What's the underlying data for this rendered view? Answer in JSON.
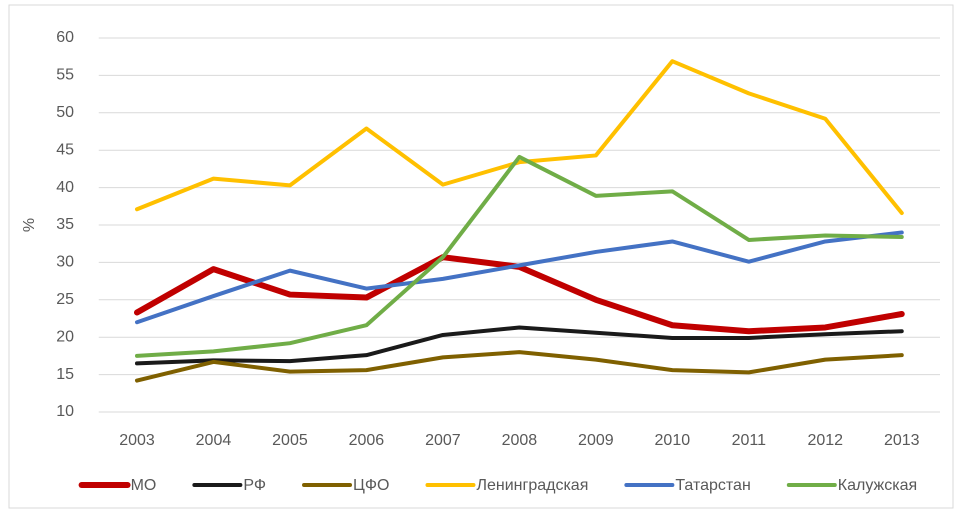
{
  "chart_data": {
    "type": "line",
    "ylabel": "%",
    "categories": [
      "2003",
      "2004",
      "2005",
      "2006",
      "2007",
      "2008",
      "2009",
      "2010",
      "2011",
      "2012",
      "2013"
    ],
    "series": [
      {
        "name": "МО",
        "color": "#c00000",
        "values": [
          23.3,
          29.1,
          25.7,
          25.3,
          30.7,
          29.4,
          25.0,
          21.6,
          20.8,
          21.3,
          23.1
        ]
      },
      {
        "name": "РФ",
        "color": "#1a1a1a",
        "values": [
          16.5,
          16.9,
          16.8,
          17.6,
          20.3,
          21.3,
          20.6,
          19.9,
          19.9,
          20.4,
          20.8
        ]
      },
      {
        "name": "ЦФО",
        "color": "#7f6000",
        "values": [
          14.2,
          16.7,
          15.4,
          15.6,
          17.3,
          18.0,
          17.0,
          15.6,
          15.3,
          17.0,
          17.6
        ]
      },
      {
        "name": "Ленинградская",
        "color": "#ffc000",
        "values": [
          37.1,
          41.2,
          40.3,
          47.9,
          40.4,
          43.4,
          44.3,
          56.9,
          52.6,
          49.2,
          36.6
        ]
      },
      {
        "name": "Татарстан",
        "color": "#4472c4",
        "values": [
          22.0,
          25.5,
          28.9,
          26.5,
          27.8,
          29.6,
          31.4,
          32.8,
          30.1,
          32.8,
          34.0
        ]
      },
      {
        "name": "Калужская",
        "color": "#70ad47",
        "values": [
          17.5,
          18.1,
          19.2,
          21.6,
          30.7,
          44.1,
          38.9,
          39.5,
          33.0,
          33.6,
          33.4
        ]
      }
    ],
    "ylim": [
      10,
      60
    ],
    "yticks": [
      10,
      15,
      20,
      25,
      30,
      35,
      40,
      45,
      50,
      55,
      60
    ],
    "grid": true,
    "legend": "bottom"
  }
}
